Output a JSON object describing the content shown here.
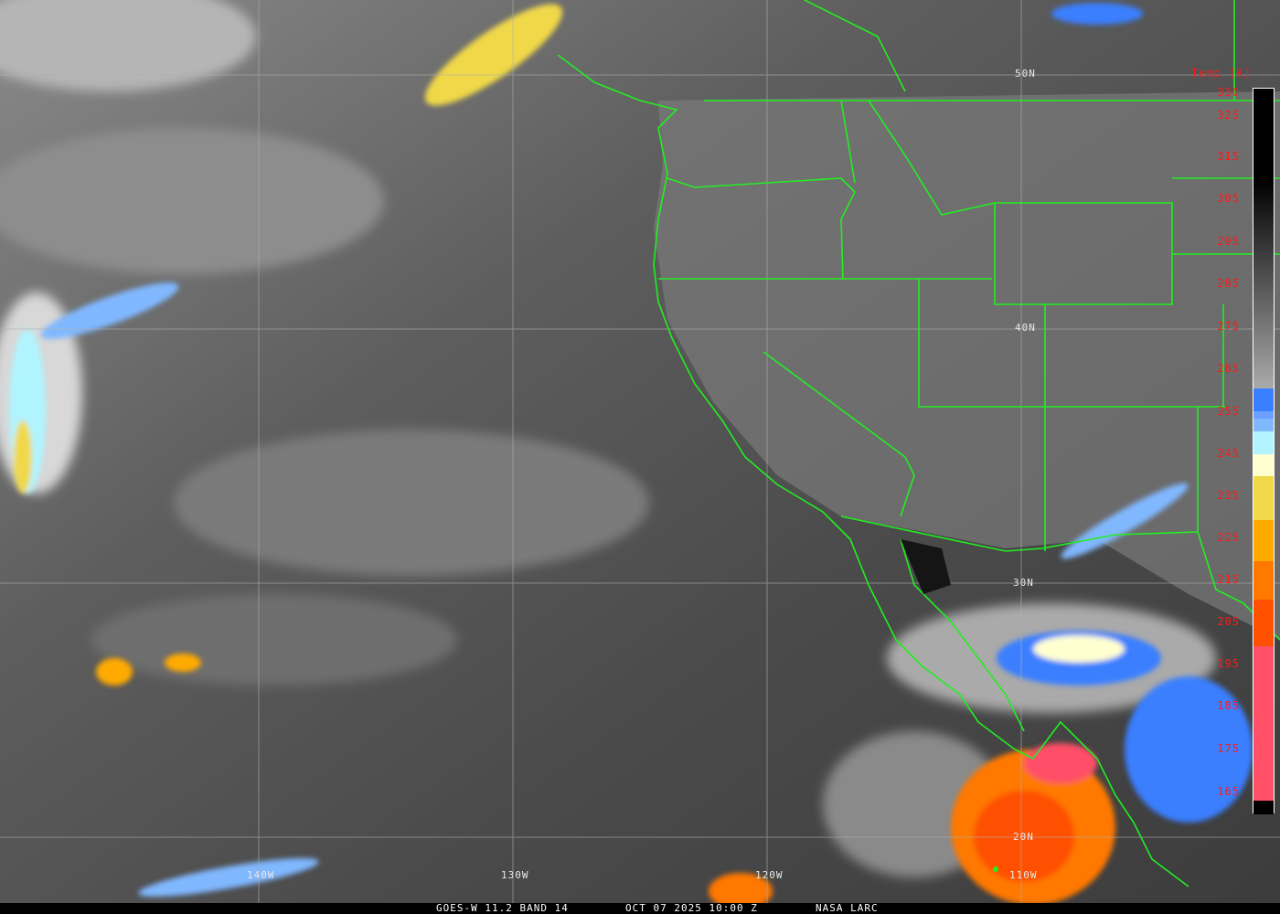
{
  "caption": {
    "satellite": "GOES-W 11.2 BAND 14",
    "datetime": "OCT 07 2025 10:00 Z",
    "source": "NASA LARC"
  },
  "colorbar": {
    "title": "Temp [K]",
    "ticks": [
      "330",
      "325",
      "315",
      "305",
      "295",
      "285",
      "275",
      "265",
      "255",
      "245",
      "235",
      "225",
      "215",
      "205",
      "195",
      "185",
      "175",
      "165"
    ],
    "colors": {
      "cold_pink": "#ff5068",
      "red_orange": "#ff5000",
      "orange_dark": "#ff7800",
      "orange": "#ffaa00",
      "yellow": "#f0d848",
      "cream": "#ffffd0",
      "cyan": "#b0f4ff",
      "light_blue": "#80b8ff",
      "blue": "#3a7fff"
    }
  },
  "lat_labels": [
    "50N",
    "40N",
    "30N",
    "20N"
  ],
  "lon_labels": [
    "140W",
    "130W",
    "120W",
    "110W"
  ],
  "overlay_color": "#22ee22"
}
